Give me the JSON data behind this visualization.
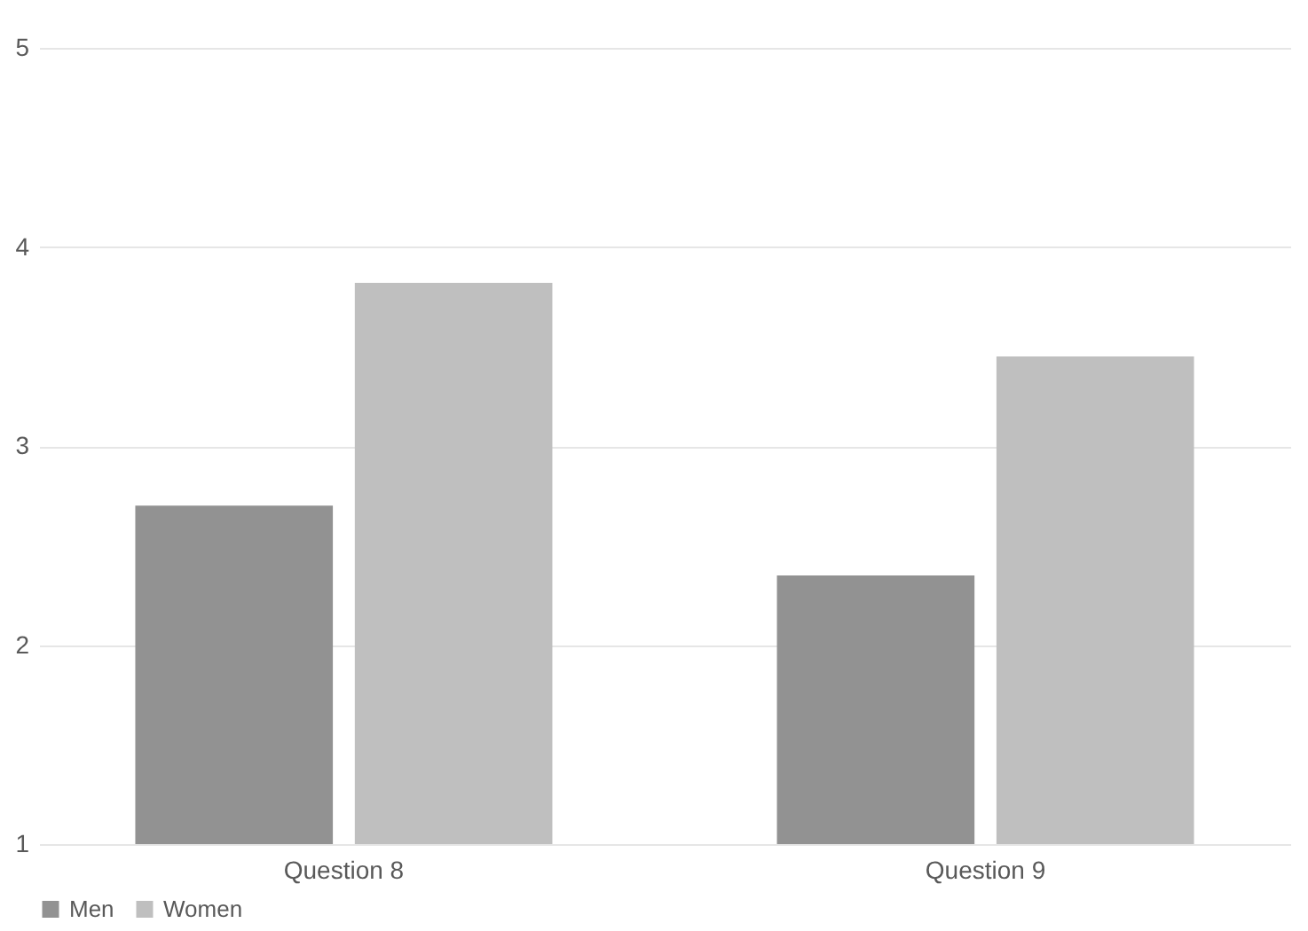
{
  "chart_data": {
    "type": "bar",
    "categories": [
      "Question 8",
      "Question 9"
    ],
    "series": [
      {
        "name": "Men",
        "color": "#929292",
        "values": [
          2.7,
          2.35
        ]
      },
      {
        "name": "Women",
        "color": "#bfbfbf",
        "values": [
          3.82,
          3.45
        ]
      }
    ],
    "ylim": [
      1,
      5
    ],
    "yticks": [
      1,
      2,
      3,
      4,
      5
    ],
    "grid": "y",
    "legend": "bottom"
  }
}
